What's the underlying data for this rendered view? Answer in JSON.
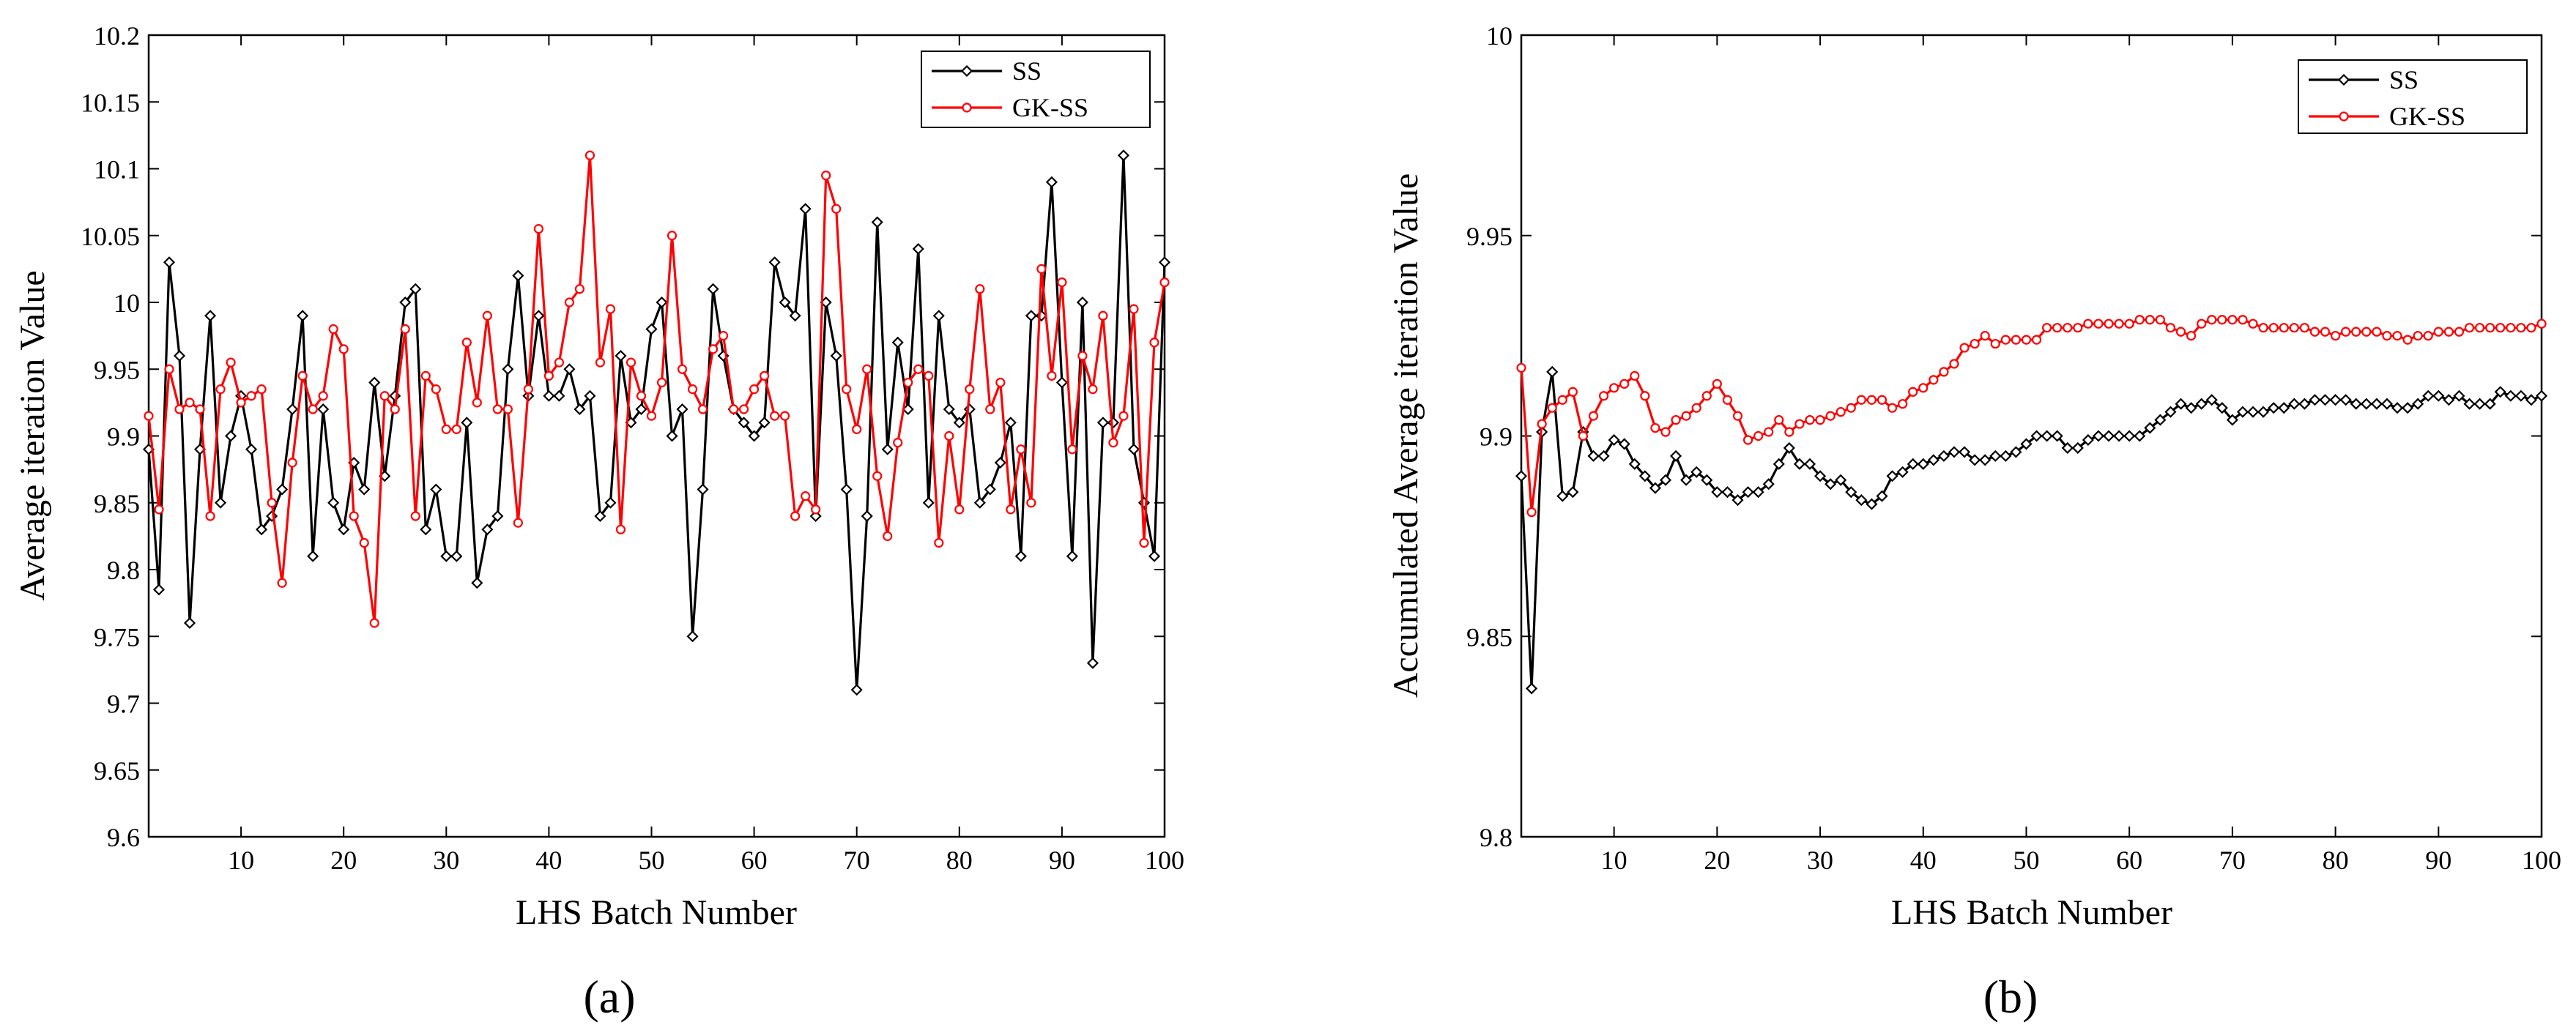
{
  "chart_data": [
    {
      "type": "line",
      "panel_label": "(a)",
      "title": "",
      "xlabel": "LHS Batch Number",
      "ylabel": "Average iteration Value",
      "xlim": [
        1,
        100
      ],
      "ylim": [
        9.6,
        10.2
      ],
      "xticks": [
        10,
        20,
        30,
        40,
        50,
        60,
        70,
        80,
        90,
        100
      ],
      "xtick_labels": [
        "10",
        "20",
        "30",
        "40",
        "50",
        "60",
        "70",
        "80",
        "90",
        "100"
      ],
      "yticks": [
        9.6,
        9.65,
        9.7,
        9.75,
        9.8,
        9.85,
        9.9,
        9.95,
        10,
        10.05,
        10.1,
        10.15,
        10.2
      ],
      "ytick_labels": [
        "9.6",
        "9.65",
        "9.7",
        "9.75",
        "9.8",
        "9.85",
        "9.9",
        "9.95",
        "10",
        "10.05",
        "10.1",
        "10.15",
        "10.2"
      ],
      "grid": false,
      "legend_position": "top-right",
      "series": [
        {
          "name": "SS",
          "color": "#000000",
          "marker": "diamond",
          "values": [
            9.89,
            9.785,
            10.03,
            9.96,
            9.76,
            9.89,
            9.99,
            9.85,
            9.9,
            9.93,
            9.89,
            9.83,
            9.84,
            9.86,
            9.92,
            9.99,
            9.81,
            9.92,
            9.85,
            9.83,
            9.88,
            9.86,
            9.94,
            9.87,
            9.93,
            10.0,
            10.01,
            9.83,
            9.86,
            9.81,
            9.81,
            9.91,
            9.79,
            9.83,
            9.84,
            9.95,
            10.02,
            9.93,
            9.99,
            9.93,
            9.93,
            9.95,
            9.92,
            9.93,
            9.84,
            9.85,
            9.96,
            9.91,
            9.92,
            9.98,
            10.0,
            9.9,
            9.92,
            9.75,
            9.86,
            10.01,
            9.96,
            9.92,
            9.91,
            9.9,
            9.91,
            10.03,
            10.0,
            9.99,
            10.07,
            9.84,
            10.0,
            9.96,
            9.86,
            9.71,
            9.84,
            10.06,
            9.89,
            9.97,
            9.92,
            10.04,
            9.85,
            9.99,
            9.92,
            9.91,
            9.92,
            9.85,
            9.86,
            9.88,
            9.91,
            9.81,
            9.99,
            9.99,
            10.09,
            9.94,
            9.81,
            10.0,
            9.73,
            9.91,
            9.91,
            10.11,
            9.89,
            9.85,
            9.81,
            10.03
          ]
        },
        {
          "name": "GK-SS",
          "color": "#ff0000",
          "marker": "circle",
          "values": [
            9.915,
            9.845,
            9.95,
            9.92,
            9.925,
            9.92,
            9.84,
            9.935,
            9.955,
            9.925,
            9.93,
            9.935,
            9.85,
            9.79,
            9.88,
            9.945,
            9.92,
            9.93,
            9.98,
            9.965,
            9.84,
            9.82,
            9.76,
            9.93,
            9.92,
            9.98,
            9.84,
            9.945,
            9.935,
            9.905,
            9.905,
            9.97,
            9.925,
            9.99,
            9.92,
            9.92,
            9.835,
            9.935,
            10.055,
            9.945,
            9.955,
            10.0,
            10.01,
            10.11,
            9.955,
            9.995,
            9.83,
            9.955,
            9.93,
            9.915,
            9.94,
            10.05,
            9.95,
            9.935,
            9.92,
            9.965,
            9.975,
            9.92,
            9.92,
            9.935,
            9.945,
            9.915,
            9.915,
            9.84,
            9.855,
            9.845,
            10.095,
            10.07,
            9.935,
            9.905,
            9.95,
            9.87,
            9.825,
            9.895,
            9.94,
            9.95,
            9.945,
            9.82,
            9.9,
            9.845,
            9.935,
            10.01,
            9.92,
            9.94,
            9.845,
            9.89,
            9.85,
            10.025,
            9.945,
            10.015,
            9.89,
            9.96,
            9.935,
            9.99,
            9.895,
            9.915,
            9.995,
            9.82,
            9.97,
            10.015
          ]
        }
      ]
    },
    {
      "type": "line",
      "panel_label": "(b)",
      "title": "",
      "xlabel": "LHS Batch Number",
      "ylabel": "Accumulated Average iteration Value",
      "xlim": [
        1,
        100
      ],
      "ylim": [
        9.8,
        10.0
      ],
      "xticks": [
        10,
        20,
        30,
        40,
        50,
        60,
        70,
        80,
        90,
        100
      ],
      "xtick_labels": [
        "10",
        "20",
        "30",
        "40",
        "50",
        "60",
        "70",
        "80",
        "90",
        "100"
      ],
      "yticks": [
        9.8,
        9.85,
        9.9,
        9.95,
        10.0
      ],
      "ytick_labels": [
        "9.8",
        "9.85",
        "9.9",
        "9.95",
        "10"
      ],
      "grid": false,
      "legend_position": "top-right",
      "series": [
        {
          "name": "SS",
          "color": "#000000",
          "marker": "diamond",
          "values": [
            9.89,
            9.837,
            9.901,
            9.916,
            9.885,
            9.886,
            9.901,
            9.895,
            9.895,
            9.899,
            9.898,
            9.893,
            9.89,
            9.887,
            9.889,
            9.895,
            9.889,
            9.891,
            9.889,
            9.886,
            9.886,
            9.884,
            9.886,
            9.886,
            9.888,
            9.893,
            9.897,
            9.893,
            9.893,
            9.89,
            9.888,
            9.889,
            9.886,
            9.884,
            9.883,
            9.885,
            9.89,
            9.891,
            9.893,
            9.893,
            9.894,
            9.895,
            9.896,
            9.896,
            9.894,
            9.894,
            9.895,
            9.895,
            9.896,
            9.898,
            9.9,
            9.9,
            9.9,
            9.897,
            9.897,
            9.899,
            9.9,
            9.9,
            9.9,
            9.9,
            9.9,
            9.902,
            9.904,
            9.906,
            9.908,
            9.907,
            9.908,
            9.909,
            9.907,
            9.904,
            9.906,
            9.906,
            9.906,
            9.907,
            9.907,
            9.908,
            9.908,
            9.909,
            9.909,
            9.909,
            9.909,
            9.908,
            9.908,
            9.908,
            9.908,
            9.907,
            9.907,
            9.908,
            9.91,
            9.91,
            9.909,
            9.91,
            9.908,
            9.908,
            9.908,
            9.911,
            9.91,
            9.91,
            9.909,
            9.91
          ]
        },
        {
          "name": "GK-SS",
          "color": "#ff0000",
          "marker": "circle",
          "values": [
            9.917,
            9.881,
            9.903,
            9.907,
            9.909,
            9.911,
            9.9,
            9.905,
            9.91,
            9.912,
            9.913,
            9.915,
            9.91,
            9.902,
            9.901,
            9.904,
            9.905,
            9.907,
            9.91,
            9.913,
            9.909,
            9.905,
            9.899,
            9.9,
            9.901,
            9.904,
            9.901,
            9.903,
            9.904,
            9.904,
            9.905,
            9.906,
            9.907,
            9.909,
            9.909,
            9.909,
            9.907,
            9.908,
            9.911,
            9.912,
            9.914,
            9.916,
            9.918,
            9.922,
            9.923,
            9.925,
            9.923,
            9.924,
            9.924,
            9.924,
            9.924,
            9.927,
            9.927,
            9.927,
            9.927,
            9.928,
            9.928,
            9.928,
            9.928,
            9.928,
            9.929,
            9.929,
            9.929,
            9.927,
            9.926,
            9.925,
            9.928,
            9.929,
            9.929,
            9.929,
            9.929,
            9.928,
            9.927,
            9.927,
            9.927,
            9.927,
            9.927,
            9.926,
            9.926,
            9.925,
            9.926,
            9.926,
            9.926,
            9.926,
            9.925,
            9.925,
            9.924,
            9.925,
            9.925,
            9.926,
            9.926,
            9.926,
            9.927,
            9.927,
            9.927,
            9.927,
            9.927,
            9.927,
            9.927,
            9.928
          ]
        }
      ]
    }
  ]
}
